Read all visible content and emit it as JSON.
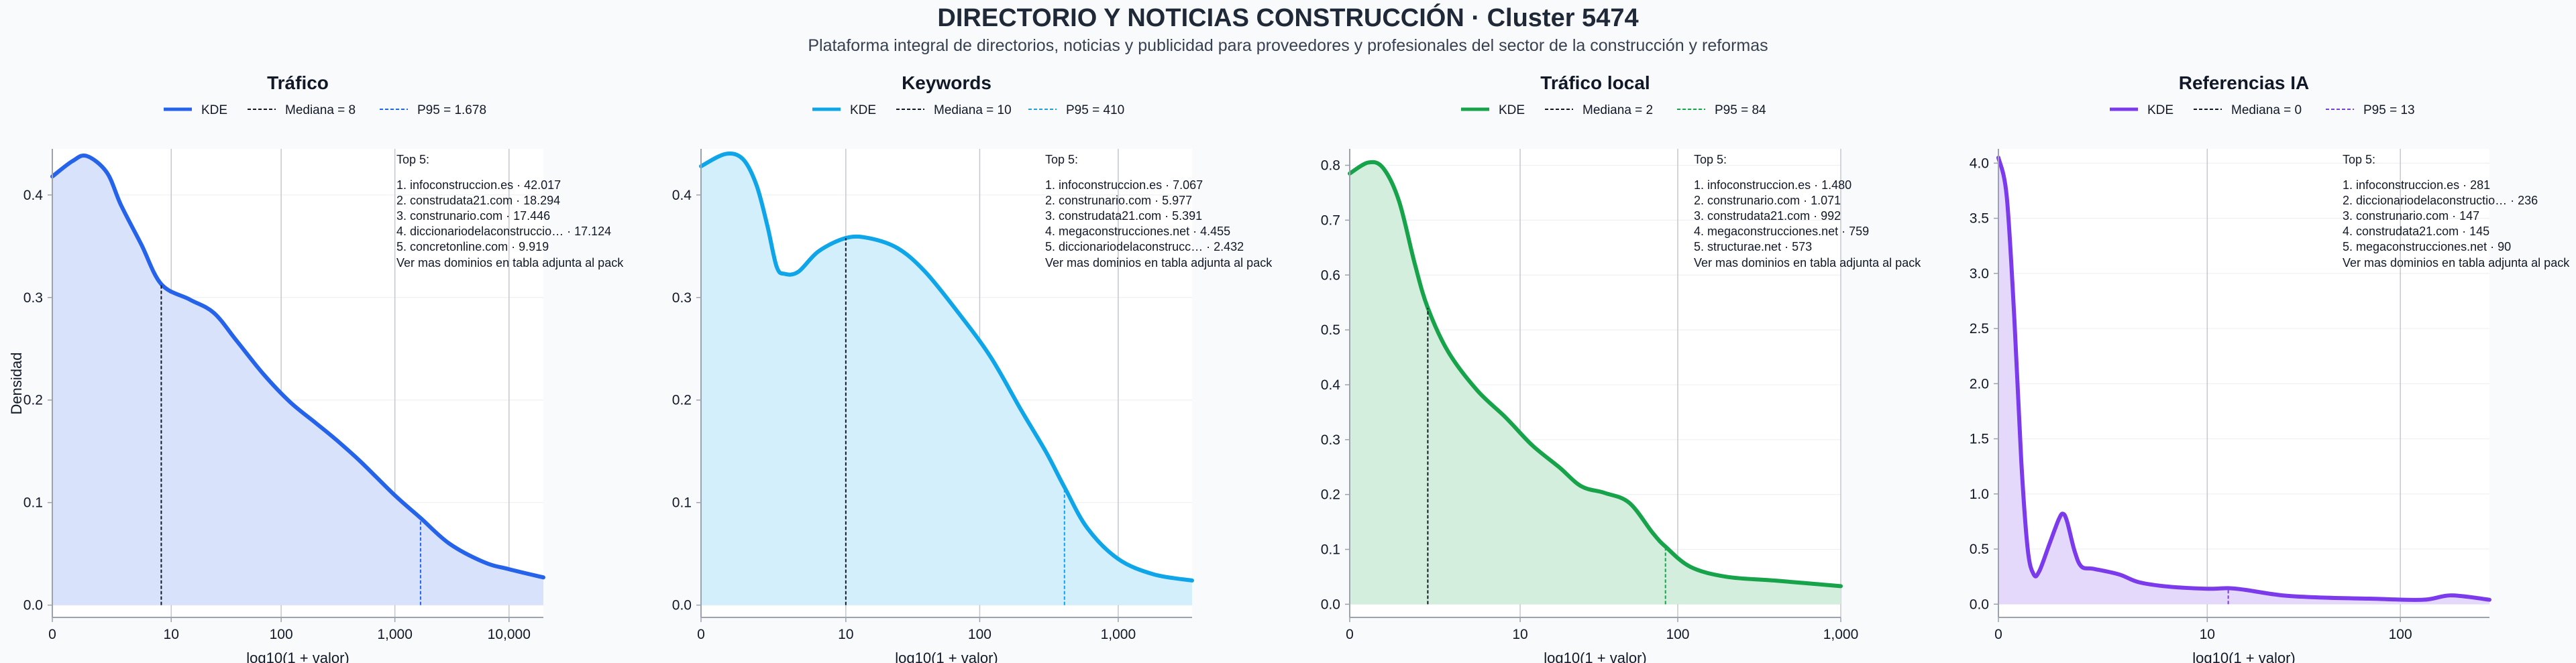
{
  "title": "DIRECTORIO Y NOTICIAS CONSTRUCCIÓN · Cluster 5474",
  "subtitle": "Plataforma integral de directorios, noticias y publicidad para proveedores y profesionales del sector de la construcción y reformas",
  "y_axis_label": "Densidad",
  "chart_data": [
    {
      "type": "area",
      "title": "Tráfico",
      "color": "#2563eb",
      "fill": "#d9e2fb",
      "xlabel": "log10(1 + valor)",
      "ylabel": "Densidad",
      "x_scale": "log10(1+x)",
      "x_ticks": [
        0,
        10,
        100,
        1000,
        10000
      ],
      "x_tick_labels": [
        "0",
        "10",
        "100",
        "1,000",
        "10,000"
      ],
      "xlim": [
        0,
        20000
      ],
      "y_ticks": [
        0.0,
        0.1,
        0.2,
        0.3,
        0.4
      ],
      "y_tick_labels": [
        "0.0",
        "0.1",
        "0.2",
        "0.3",
        "0.4"
      ],
      "ylim": [
        -0.012,
        0.445
      ],
      "grid": "x-major",
      "legend": [
        "KDE",
        "Mediana = 8",
        "P95 = 1.678"
      ],
      "legend_placement": "top",
      "median": 8,
      "p95": 1678,
      "series": [
        {
          "name": "KDE",
          "points": [
            [
              0,
              0.418
            ],
            [
              0.5,
              0.433
            ],
            [
              1,
              0.438
            ],
            [
              2,
              0.422
            ],
            [
              3,
              0.39
            ],
            [
              5,
              0.352
            ],
            [
              8,
              0.313
            ],
            [
              15,
              0.298
            ],
            [
              25,
              0.285
            ],
            [
              40,
              0.258
            ],
            [
              70,
              0.225
            ],
            [
              120,
              0.198
            ],
            [
              200,
              0.178
            ],
            [
              300,
              0.162
            ],
            [
              500,
              0.14
            ],
            [
              1000,
              0.107
            ],
            [
              1678,
              0.085
            ],
            [
              3000,
              0.06
            ],
            [
              6000,
              0.042
            ],
            [
              10000,
              0.035
            ],
            [
              20000,
              0.027
            ]
          ]
        }
      ],
      "annotation_title": "Top 5:",
      "annotation_lines": [
        "1. infoconstruccion.es · 42.017",
        "2. construdata21.com · 18.294",
        "3. construnario.com · 17.446",
        "4. diccionariodelaconstruccio… · 17.124",
        "5. concretonline.com · 9.919"
      ],
      "annotation_footer": "Ver mas dominios en tabla adjunta al pack"
    },
    {
      "type": "area",
      "title": "Keywords",
      "color": "#0ea5e9",
      "fill": "#d3effb",
      "xlabel": "log10(1 + valor)",
      "x_scale": "log10(1+x)",
      "x_ticks": [
        0,
        10,
        100,
        1000
      ],
      "x_tick_labels": [
        "0",
        "10",
        "100",
        "1,000"
      ],
      "xlim": [
        0,
        3400
      ],
      "y_ticks": [
        0.0,
        0.1,
        0.2,
        0.3,
        0.4
      ],
      "y_tick_labels": [
        "0.0",
        "0.1",
        "0.2",
        "0.3",
        "0.4"
      ],
      "ylim": [
        -0.012,
        0.445
      ],
      "grid": "x-major",
      "legend": [
        "KDE",
        "Mediana = 10",
        "P95 = 410"
      ],
      "legend_placement": "top",
      "median": 10,
      "p95": 410,
      "series": [
        {
          "name": "KDE",
          "points": [
            [
              0,
              0.428
            ],
            [
              0.5,
              0.44
            ],
            [
              1,
              0.435
            ],
            [
              1.5,
              0.41
            ],
            [
              2,
              0.37
            ],
            [
              2.5,
              0.33
            ],
            [
              3,
              0.323
            ],
            [
              4,
              0.325
            ],
            [
              6,
              0.345
            ],
            [
              10,
              0.358
            ],
            [
              15,
              0.358
            ],
            [
              25,
              0.348
            ],
            [
              40,
              0.325
            ],
            [
              70,
              0.285
            ],
            [
              120,
              0.242
            ],
            [
              200,
              0.19
            ],
            [
              300,
              0.15
            ],
            [
              410,
              0.115
            ],
            [
              600,
              0.075
            ],
            [
              1000,
              0.045
            ],
            [
              1800,
              0.03
            ],
            [
              3400,
              0.024
            ]
          ]
        }
      ],
      "annotation_title": "Top 5:",
      "annotation_lines": [
        "1. infoconstruccion.es · 7.067",
        "2. construnario.com · 5.977",
        "3. construdata21.com · 5.391",
        "4. megaconstrucciones.net · 4.455",
        "5. diccionariodelaconstrucc… · 2.432"
      ],
      "annotation_footer": "Ver mas dominios en tabla adjunta al pack"
    },
    {
      "type": "area",
      "title": "Tráfico local",
      "color": "#16a34a",
      "fill": "#d3eedd",
      "xlabel": "log10(1 + valor)",
      "x_scale": "log10(1+x)",
      "x_ticks": [
        0,
        10,
        100,
        1000
      ],
      "x_tick_labels": [
        "0",
        "10",
        "100",
        "1,000"
      ],
      "xlim": [
        0,
        1000
      ],
      "y_ticks": [
        0.0,
        0.1,
        0.2,
        0.3,
        0.4,
        0.5,
        0.6,
        0.7,
        0.8
      ],
      "y_tick_labels": [
        "0.0",
        "0.1",
        "0.2",
        "0.3",
        "0.4",
        "0.5",
        "0.6",
        "0.7",
        "0.8"
      ],
      "ylim": [
        -0.024,
        0.83
      ],
      "grid": "x-major",
      "legend": [
        "KDE",
        "Mediana = 2",
        "P95 = 84"
      ],
      "legend_placement": "top",
      "median": 2,
      "p95": 84,
      "series": [
        {
          "name": "KDE",
          "points": [
            [
              0,
              0.785
            ],
            [
              0.3,
              0.805
            ],
            [
              0.6,
              0.795
            ],
            [
              1,
              0.735
            ],
            [
              1.5,
              0.62
            ],
            [
              2,
              0.54
            ],
            [
              3,
              0.46
            ],
            [
              5,
              0.39
            ],
            [
              8,
              0.34
            ],
            [
              12,
              0.29
            ],
            [
              18,
              0.25
            ],
            [
              25,
              0.215
            ],
            [
              35,
              0.203
            ],
            [
              50,
              0.185
            ],
            [
              70,
              0.13
            ],
            [
              84,
              0.105
            ],
            [
              120,
              0.068
            ],
            [
              200,
              0.05
            ],
            [
              400,
              0.043
            ],
            [
              1000,
              0.033
            ]
          ]
        }
      ],
      "annotation_title": "Top 5:",
      "annotation_lines": [
        "1. infoconstruccion.es · 1.480",
        "2. construnario.com · 1.071",
        "3. construdata21.com · 992",
        "4. megaconstrucciones.net · 759",
        "5. structurae.net · 573"
      ],
      "annotation_footer": "Ver mas dominios en tabla adjunta al pack"
    },
    {
      "type": "area",
      "title": "Referencias IA",
      "color": "#7c3aed",
      "fill": "#e5d9fb",
      "xlabel": "log10(1 + valor)",
      "x_scale": "log10(1+x)",
      "x_ticks": [
        0,
        10,
        100
      ],
      "x_tick_labels": [
        "0",
        "10",
        "100"
      ],
      "xlim": [
        0,
        280
      ],
      "y_ticks": [
        0.0,
        0.5,
        1.0,
        1.5,
        2.0,
        2.5,
        3.0,
        3.5,
        4.0
      ],
      "y_tick_labels": [
        "0.0",
        "0.5",
        "1.0",
        "1.5",
        "2.0",
        "2.5",
        "3.0",
        "3.5",
        "4.0"
      ],
      "ylim": [
        -0.12,
        4.13
      ],
      "grid": "x-major",
      "legend": [
        "KDE",
        "Mediana = 0",
        "P95 = 13"
      ],
      "legend_placement": "top",
      "median": 0,
      "p95": 13,
      "series": [
        {
          "name": "KDE",
          "points": [
            [
              0,
              4.05
            ],
            [
              0.1,
              3.7
            ],
            [
              0.2,
              2.6
            ],
            [
              0.3,
              1.3
            ],
            [
              0.4,
              0.5
            ],
            [
              0.5,
              0.27
            ],
            [
              0.6,
              0.3
            ],
            [
              0.8,
              0.55
            ],
            [
              1.0,
              0.77
            ],
            [
              1.1,
              0.82
            ],
            [
              1.2,
              0.75
            ],
            [
              1.4,
              0.48
            ],
            [
              1.6,
              0.34
            ],
            [
              2,
              0.32
            ],
            [
              3,
              0.27
            ],
            [
              4,
              0.2
            ],
            [
              6,
              0.16
            ],
            [
              10,
              0.14
            ],
            [
              13,
              0.145
            ],
            [
              16,
              0.13
            ],
            [
              25,
              0.08
            ],
            [
              40,
              0.06
            ],
            [
              70,
              0.05
            ],
            [
              130,
              0.04
            ],
            [
              180,
              0.08
            ],
            [
              280,
              0.04
            ]
          ]
        }
      ],
      "annotation_title": "Top 5:",
      "annotation_lines": [
        "1. infoconstruccion.es · 281",
        "2. diccionariodelaconstructio… · 236",
        "3. construnario.com · 147",
        "4. construdata21.com · 145",
        "5. megaconstrucciones.net · 90"
      ],
      "annotation_footer": "Ver mas dominios en tabla adjunta al pack"
    }
  ]
}
